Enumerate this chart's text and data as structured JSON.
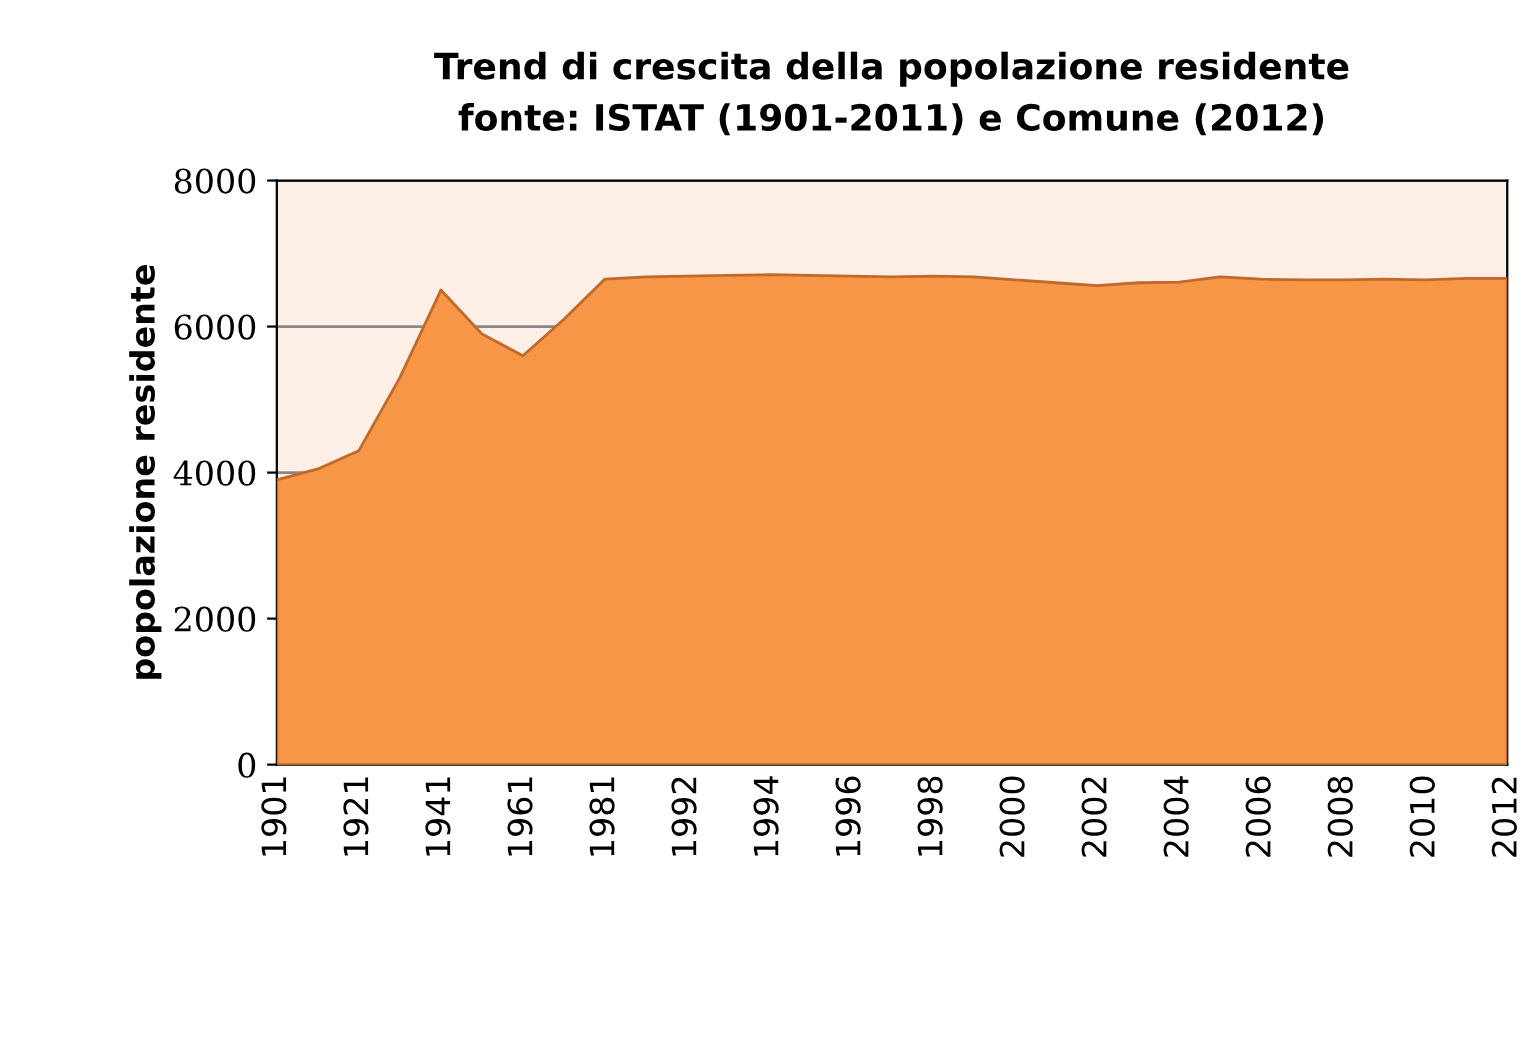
{
  "chart_data": {
    "type": "area",
    "title": "Trend di crescita della popolazione residente\nfonte: ISTAT (1901-2011) e Comune (2012)",
    "ylabel": "popolazione residente",
    "categories": [
      "1901",
      null,
      "1921",
      null,
      "1941",
      null,
      "1961",
      null,
      "1981",
      null,
      "1992",
      null,
      "1994",
      null,
      "1996",
      null,
      "1998",
      null,
      "2000",
      null,
      "2002",
      null,
      "2004",
      null,
      "2006",
      null,
      "2008",
      null,
      "2010",
      null,
      "2012"
    ],
    "series": [
      {
        "color": "#f79646",
        "values": [
          3900,
          4050,
          4300,
          5300,
          6500,
          5900,
          5600,
          6100,
          6650,
          6680,
          6690,
          6700,
          6710,
          6700,
          6690,
          6680,
          6690,
          6680,
          6640,
          6600,
          6560,
          6600,
          6610,
          6680,
          6650,
          6640,
          6640,
          6650,
          6640,
          6660,
          6660
        ]
      }
    ],
    "ylim": [
      0,
      8000
    ],
    "yticks": [
      0,
      2000,
      4000,
      6000,
      8000
    ],
    "grid": "y",
    "legend": false
  }
}
